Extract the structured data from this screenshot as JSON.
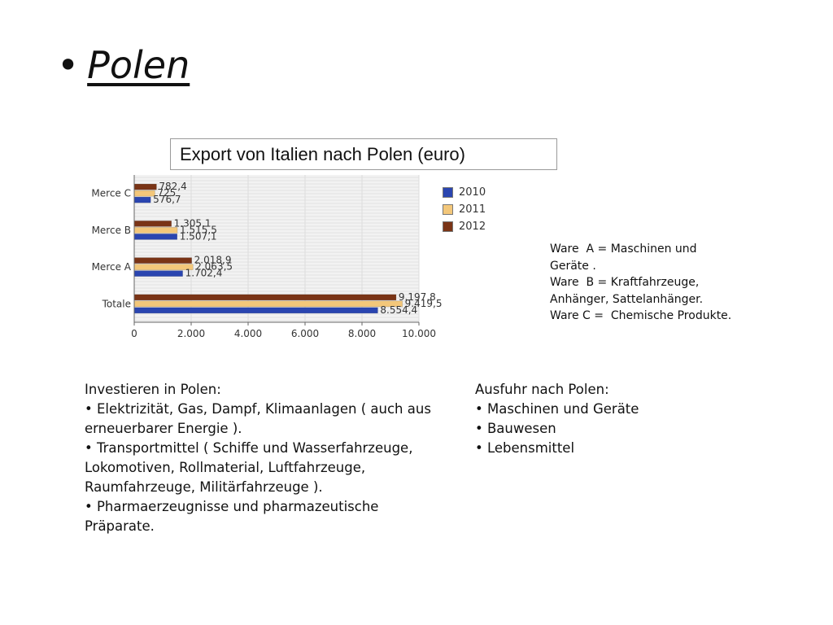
{
  "slide": {
    "bullet": "•",
    "title": "Polen"
  },
  "chart_title": "Export von Italien nach Polen (euro)",
  "chart_data": {
    "type": "bar",
    "orientation": "horizontal",
    "title": "Export von Italien nach Polen (euro)",
    "categories": [
      "Merce C",
      "Merce B",
      "Merce A",
      "Totale"
    ],
    "series": [
      {
        "name": "2010",
        "color": "#2a45b0",
        "values": [
          576.7,
          1507.1,
          1702.4,
          8554.4
        ],
        "labels": [
          "576,7",
          "1.507,1",
          "1.702,4",
          "8.554,4"
        ]
      },
      {
        "name": "2011",
        "color": "#f3c77a",
        "values": [
          725,
          1515.5,
          2063.5,
          9419.5
        ],
        "labels": [
          "725",
          "1.515,5",
          "2.063,5",
          "9.419,5"
        ]
      },
      {
        "name": "2012",
        "color": "#7a3416",
        "values": [
          782.4,
          1305.1,
          2018.9,
          9197.8
        ],
        "labels": [
          "782,4",
          "1.305,1",
          "2.018,9",
          "9.197,8"
        ]
      }
    ],
    "xlim": [
      0,
      10000
    ],
    "xticks": [
      0,
      2000,
      4000,
      6000,
      8000,
      10000
    ],
    "xtick_labels": [
      "0",
      "2.000",
      "4.000",
      "6.000",
      "8.000",
      "10.000"
    ],
    "grid": true,
    "legend_position": "right"
  },
  "ware_notes": [
    "Ware  A = Maschinen und",
    "Geräte .",
    "Ware  B = Kraftfahrzeuge,",
    "Anhänger, Sattelanhänger.",
    "Ware C =  Chemische Produkte."
  ],
  "invest": {
    "heading": "Investieren in Polen:",
    "items": [
      "•  Elektrizität, Gas, Dampf, Klimaanlagen ( auch aus erneuerbarer Energie ).",
      "•  Transportmittel ( Schiffe und Wasserfahrzeuge, Lokomotiven, Rollmaterial, Luftfahrzeuge, Raumfahrzeuge, Militärfahrzeuge ).",
      "•  Pharmaerzeugnisse und pharmazeutische Präparate."
    ]
  },
  "ausfuhr": {
    "heading": "Ausfuhr nach Polen:",
    "items": [
      "•  Maschinen und Geräte",
      "• Bauwesen",
      "•  Lebensmittel"
    ]
  }
}
